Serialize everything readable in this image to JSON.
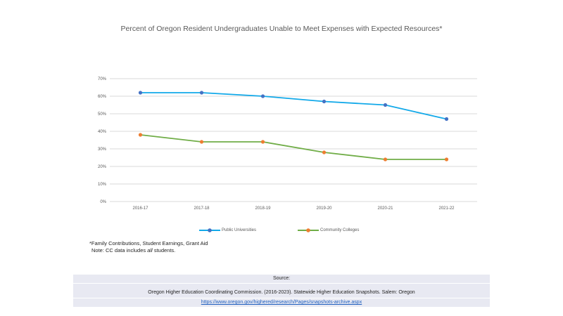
{
  "chart_data": {
    "type": "line",
    "title": "Percent of Oregon Resident Undergraduates Unable to Meet Expenses with Expected Resources*",
    "xlabel": "",
    "ylabel": "",
    "categories": [
      "2016-17",
      "2017-18",
      "2018-19",
      "2019-20",
      "2020-21",
      "2021-22"
    ],
    "ylim": [
      0,
      70
    ],
    "yticks": [
      0,
      10,
      20,
      30,
      40,
      50,
      60,
      70
    ],
    "ytick_labels": [
      "0%",
      "10%",
      "20%",
      "30%",
      "40%",
      "50%",
      "60%",
      "70%"
    ],
    "grid": true,
    "legend_position": "bottom",
    "series": [
      {
        "name": "Public Universities",
        "values": [
          62,
          62,
          60,
          57,
          55,
          47
        ],
        "line_color": "#12a9e9",
        "marker_color": "#4472c4"
      },
      {
        "name": "Community Colleges",
        "values": [
          38,
          34,
          34,
          28,
          24,
          24
        ],
        "line_color": "#70ad47",
        "marker_color": "#ed7d31"
      }
    ]
  },
  "footnote": {
    "line1": "*Family Contributions, Student Earnings, Grant Aid",
    "line2_prefix": "Note: CC data includes ",
    "line2_italic": "all",
    "line2_suffix": " students."
  },
  "source": {
    "label": "Source:",
    "citation": "Oregon Higher Education Coordinating Commission. (2016-2023). Statewide Higher Education Snapshots. Salem: Oregon",
    "link": "https://www.oregon.gov/highered/research/Pages/snapshots-archive.aspx"
  }
}
